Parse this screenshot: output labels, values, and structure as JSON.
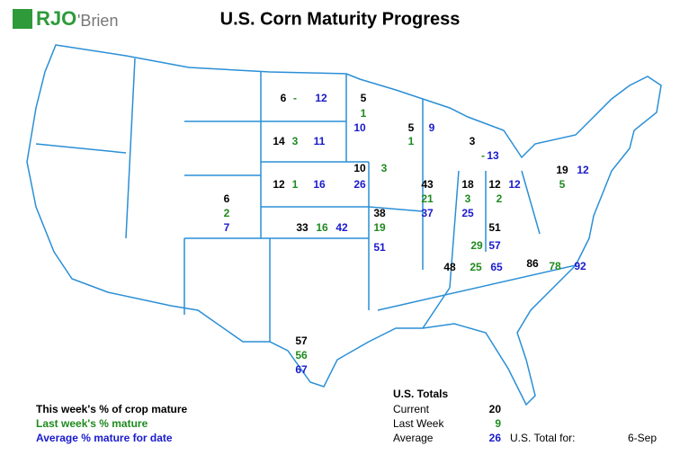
{
  "header": {
    "logo_left": "RJO",
    "logo_right": "'Brien",
    "title": "U.S. Corn Maturity Progress"
  },
  "states": [
    {
      "this_week": 6,
      "last_week": "-",
      "average": 12
    },
    {
      "this_week": 5,
      "last_week": 1,
      "average": 10
    },
    {
      "this_week": 14,
      "last_week": 3,
      "average": 11
    },
    {
      "this_week": 5,
      "last_week": 1,
      "average": 9
    },
    {
      "this_week": 3,
      "last_week": "-",
      "average": 13
    },
    {
      "this_week": 12,
      "last_week": 1,
      "average": 16
    },
    {
      "this_week": 10,
      "last_week": 3,
      "average": 26
    },
    {
      "this_week": 43,
      "last_week": 21,
      "average": 37
    },
    {
      "this_week": 18,
      "last_week": 3,
      "average": 25
    },
    {
      "this_week": 12,
      "last_week": 2,
      "average": 12
    },
    {
      "this_week": 19,
      "last_week": 5,
      "average": 12
    },
    {
      "this_week": 6,
      "last_week": 2,
      "average": 7
    },
    {
      "this_week": 33,
      "last_week": 16,
      "average": 42
    },
    {
      "this_week": 38,
      "last_week": 19,
      "average": 51
    },
    {
      "this_week": 51,
      "last_week": 29,
      "average": 57
    },
    {
      "this_week": 48,
      "last_week": 25,
      "average": 65
    },
    {
      "this_week": 86,
      "last_week": 78,
      "average": 92
    },
    {
      "this_week": 57,
      "last_week": 56,
      "average": 67
    }
  ],
  "legend": {
    "this_week": "This week's % of crop mature",
    "last_week": "Last week's % mature",
    "average": "Average % mature for date"
  },
  "totals": {
    "title": "U.S. Totals",
    "rows": [
      {
        "label": "Current",
        "value": 20
      },
      {
        "label": "Last Week",
        "value": 9
      },
      {
        "label": "Average",
        "value": 26
      }
    ],
    "date_label": "U.S. Total for:",
    "date": "6-Sep"
  }
}
